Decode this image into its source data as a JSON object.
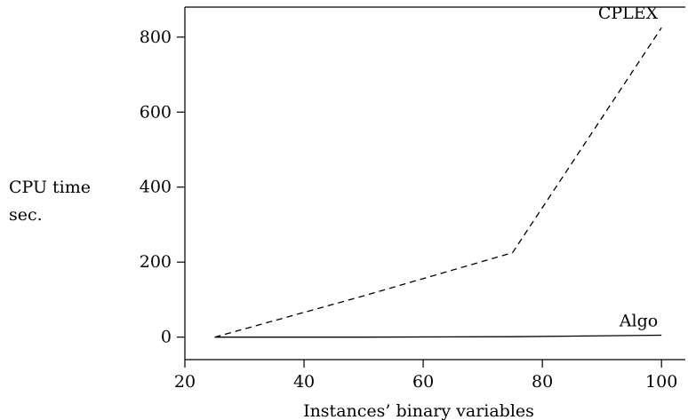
{
  "chart_data": {
    "type": "line",
    "title": "",
    "xlabel": "Instances’ binary variables",
    "ylabel": [
      "CPU time",
      "sec."
    ],
    "xlim": [
      20,
      104
    ],
    "ylim": [
      -60,
      880
    ],
    "xticks": [
      20,
      40,
      60,
      80,
      100
    ],
    "yticks": [
      0,
      200,
      400,
      600,
      800
    ],
    "grid": false,
    "legend": "inline-labels",
    "series": [
      {
        "name": "CPLEX",
        "style": "dashed",
        "color": "#000000",
        "x": [
          25,
          50,
          75,
          100
        ],
        "y": [
          0,
          110,
          225,
          825
        ]
      },
      {
        "name": "Algo",
        "style": "solid",
        "color": "#000000",
        "x": [
          25,
          50,
          75,
          100
        ],
        "y": [
          0,
          0,
          1,
          5
        ]
      }
    ]
  }
}
